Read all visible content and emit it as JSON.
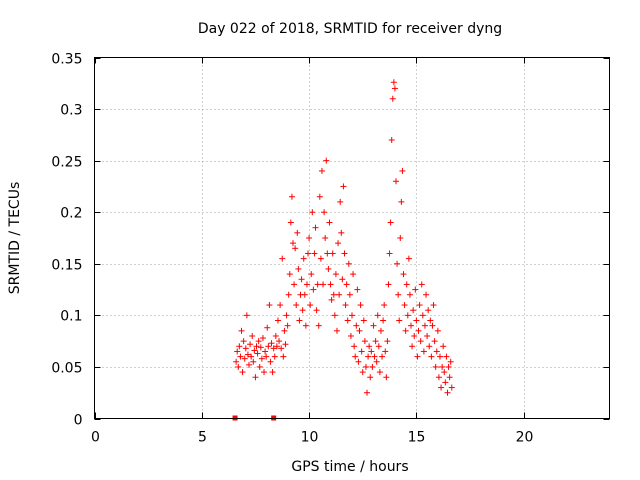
{
  "chart_data": {
    "type": "scatter",
    "title": "Day 022 of 2018, SRMTID for receiver dyng",
    "xlabel": "GPS time / hours",
    "ylabel": "SRMTID / TECUs",
    "xlim": [
      0,
      24
    ],
    "ylim": [
      0,
      0.35
    ],
    "x_ticks": [
      0,
      5,
      10,
      15,
      20
    ],
    "x_tick_labels": [
      "0",
      "5",
      "10",
      "15",
      "20"
    ],
    "y_ticks": [
      0,
      0.05,
      0.1,
      0.15,
      0.2,
      0.25,
      0.3,
      0.35
    ],
    "y_tick_labels": [
      "0",
      "0.05",
      "0.1",
      "0.15",
      "0.2",
      "0.25",
      "0.3",
      "0.35"
    ],
    "grid": true,
    "marker": "+",
    "color": "#ff0000",
    "series": [
      {
        "name": "SRMTID",
        "points": [
          [
            6.6,
            0.055
          ],
          [
            6.65,
            0.065
          ],
          [
            6.7,
            0.05
          ],
          [
            6.75,
            0.07
          ],
          [
            6.8,
            0.06
          ],
          [
            6.85,
            0.085
          ],
          [
            6.9,
            0.045
          ],
          [
            6.95,
            0.075
          ],
          [
            7.0,
            0.058
          ],
          [
            7.05,
            0.068
          ],
          [
            7.1,
            0.1
          ],
          [
            7.15,
            0.062
          ],
          [
            7.2,
            0.052
          ],
          [
            7.25,
            0.072
          ],
          [
            7.3,
            0.06
          ],
          [
            7.35,
            0.08
          ],
          [
            7.4,
            0.055
          ],
          [
            7.45,
            0.066
          ],
          [
            7.5,
            0.04
          ],
          [
            7.55,
            0.07
          ],
          [
            7.6,
            0.063
          ],
          [
            7.65,
            0.075
          ],
          [
            7.7,
            0.05
          ],
          [
            7.75,
            0.069
          ],
          [
            7.8,
            0.058
          ],
          [
            7.85,
            0.078
          ],
          [
            7.9,
            0.045
          ],
          [
            7.95,
            0.065
          ],
          [
            8.0,
            0.06
          ],
          [
            8.05,
            0.088
          ],
          [
            8.1,
            0.07
          ],
          [
            8.15,
            0.11
          ],
          [
            8.2,
            0.055
          ],
          [
            8.25,
            0.073
          ],
          [
            8.3,
            0.045
          ],
          [
            8.35,
            0.068
          ],
          [
            8.4,
            0.06
          ],
          [
            8.45,
            0.08
          ],
          [
            8.5,
            0.07
          ],
          [
            8.55,
            0.095
          ],
          [
            8.6,
            0.075
          ],
          [
            8.65,
            0.11
          ],
          [
            8.7,
            0.068
          ],
          [
            8.75,
            0.155
          ],
          [
            8.8,
            0.06
          ],
          [
            8.85,
            0.085
          ],
          [
            8.9,
            0.072
          ],
          [
            8.95,
            0.1
          ],
          [
            9.0,
            0.09
          ],
          [
            9.05,
            0.12
          ],
          [
            9.1,
            0.14
          ],
          [
            9.15,
            0.19
          ],
          [
            9.2,
            0.215
          ],
          [
            9.25,
            0.17
          ],
          [
            9.3,
            0.13
          ],
          [
            9.35,
            0.165
          ],
          [
            9.4,
            0.11
          ],
          [
            9.45,
            0.18
          ],
          [
            9.5,
            0.145
          ],
          [
            9.55,
            0.095
          ],
          [
            9.6,
            0.12
          ],
          [
            9.65,
            0.135
          ],
          [
            9.7,
            0.105
          ],
          [
            9.75,
            0.155
          ],
          [
            9.8,
            0.12
          ],
          [
            9.85,
            0.09
          ],
          [
            9.9,
            0.13
          ],
          [
            9.95,
            0.16
          ],
          [
            10.0,
            0.175
          ],
          [
            10.05,
            0.11
          ],
          [
            10.1,
            0.14
          ],
          [
            10.15,
            0.2
          ],
          [
            10.2,
            0.125
          ],
          [
            10.25,
            0.16
          ],
          [
            10.3,
            0.185
          ],
          [
            10.35,
            0.105
          ],
          [
            10.4,
            0.13
          ],
          [
            10.45,
            0.09
          ],
          [
            10.5,
            0.215
          ],
          [
            10.55,
            0.155
          ],
          [
            10.6,
            0.24
          ],
          [
            10.65,
            0.13
          ],
          [
            10.7,
            0.2
          ],
          [
            10.75,
            0.175
          ],
          [
            10.8,
            0.25
          ],
          [
            10.85,
            0.16
          ],
          [
            10.9,
            0.145
          ],
          [
            10.95,
            0.19
          ],
          [
            11.0,
            0.13
          ],
          [
            11.05,
            0.115
          ],
          [
            11.1,
            0.16
          ],
          [
            11.15,
            0.12
          ],
          [
            11.2,
            0.1
          ],
          [
            11.25,
            0.14
          ],
          [
            11.3,
            0.085
          ],
          [
            11.35,
            0.17
          ],
          [
            11.4,
            0.12
          ],
          [
            11.45,
            0.21
          ],
          [
            11.5,
            0.18
          ],
          [
            11.55,
            0.135
          ],
          [
            11.6,
            0.225
          ],
          [
            11.65,
            0.16
          ],
          [
            11.7,
            0.11
          ],
          [
            11.75,
            0.13
          ],
          [
            11.8,
            0.095
          ],
          [
            11.85,
            0.15
          ],
          [
            11.9,
            0.12
          ],
          [
            11.95,
            0.08
          ],
          [
            12.0,
            0.1
          ],
          [
            12.05,
            0.14
          ],
          [
            12.1,
            0.07
          ],
          [
            12.15,
            0.06
          ],
          [
            12.2,
            0.09
          ],
          [
            12.25,
            0.125
          ],
          [
            12.3,
            0.055
          ],
          [
            12.35,
            0.085
          ],
          [
            12.4,
            0.11
          ],
          [
            12.45,
            0.065
          ],
          [
            12.5,
            0.045
          ],
          [
            12.55,
            0.095
          ],
          [
            12.6,
            0.075
          ],
          [
            12.65,
            0.05
          ],
          [
            12.7,
            0.025
          ],
          [
            12.75,
            0.06
          ],
          [
            12.8,
            0.07
          ],
          [
            12.85,
            0.04
          ],
          [
            12.9,
            0.065
          ],
          [
            12.95,
            0.05
          ],
          [
            13.0,
            0.09
          ],
          [
            13.05,
            0.06
          ],
          [
            13.1,
            0.075
          ],
          [
            13.15,
            0.055
          ],
          [
            13.2,
            0.1
          ],
          [
            13.25,
            0.07
          ],
          [
            13.3,
            0.045
          ],
          [
            13.35,
            0.085
          ],
          [
            13.4,
            0.06
          ],
          [
            13.45,
            0.095
          ],
          [
            13.5,
            0.11
          ],
          [
            13.55,
            0.065
          ],
          [
            13.6,
            0.04
          ],
          [
            13.65,
            0.075
          ],
          [
            13.7,
            0.13
          ],
          [
            13.75,
            0.16
          ],
          [
            13.8,
            0.19
          ],
          [
            13.85,
            0.27
          ],
          [
            13.9,
            0.31
          ],
          [
            13.95,
            0.326
          ],
          [
            14.0,
            0.32
          ],
          [
            14.05,
            0.23
          ],
          [
            14.1,
            0.15
          ],
          [
            14.15,
            0.12
          ],
          [
            14.2,
            0.095
          ],
          [
            14.25,
            0.175
          ],
          [
            14.3,
            0.21
          ],
          [
            14.35,
            0.24
          ],
          [
            14.4,
            0.14
          ],
          [
            14.45,
            0.11
          ],
          [
            14.5,
            0.085
          ],
          [
            14.55,
            0.13
          ],
          [
            14.6,
            0.1
          ],
          [
            14.65,
            0.155
          ],
          [
            14.7,
            0.12
          ],
          [
            14.75,
            0.09
          ],
          [
            14.8,
            0.07
          ],
          [
            14.85,
            0.105
          ],
          [
            14.9,
            0.08
          ],
          [
            14.95,
            0.125
          ],
          [
            15.0,
            0.095
          ],
          [
            15.05,
            0.06
          ],
          [
            15.1,
            0.085
          ],
          [
            15.15,
            0.11
          ],
          [
            15.2,
            0.075
          ],
          [
            15.25,
            0.13
          ],
          [
            15.3,
            0.1
          ],
          [
            15.35,
            0.065
          ],
          [
            15.4,
            0.09
          ],
          [
            15.45,
            0.12
          ],
          [
            15.5,
            0.08
          ],
          [
            15.55,
            0.105
          ],
          [
            15.6,
            0.07
          ],
          [
            15.65,
            0.095
          ],
          [
            15.7,
            0.06
          ],
          [
            15.75,
            0.09
          ],
          [
            15.8,
            0.11
          ],
          [
            15.85,
            0.075
          ],
          [
            15.9,
            0.05
          ],
          [
            15.95,
            0.065
          ],
          [
            16.0,
            0.085
          ],
          [
            16.05,
            0.04
          ],
          [
            16.1,
            0.06
          ],
          [
            16.15,
            0.03
          ],
          [
            16.2,
            0.05
          ],
          [
            16.25,
            0.07
          ],
          [
            16.3,
            0.045
          ],
          [
            16.35,
            0.035
          ],
          [
            16.4,
            0.06
          ],
          [
            16.45,
            0.025
          ],
          [
            16.5,
            0.05
          ],
          [
            16.55,
            0.04
          ],
          [
            16.6,
            0.055
          ],
          [
            16.65,
            0.03
          ]
        ]
      }
    ],
    "zero_markers": [
      [
        6.55,
        0
      ],
      [
        8.35,
        0
      ]
    ]
  }
}
